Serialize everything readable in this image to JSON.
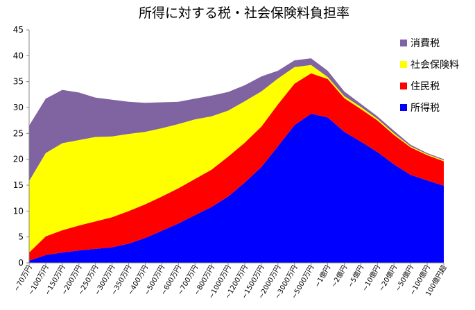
{
  "chart_data": {
    "type": "area",
    "stacked": true,
    "title": "所得に対する税・社会保険料負担率",
    "xlabel": "",
    "ylabel": "",
    "ylim": [
      0,
      45
    ],
    "yticks": [
      0,
      5,
      10,
      15,
      20,
      25,
      30,
      35,
      40,
      45
    ],
    "grid": false,
    "legend_position": "top-right",
    "categories": [
      "~70万円",
      "~100万円",
      "~150万円",
      "~200万円",
      "~250万円",
      "~300万円",
      "~350万円",
      "~400万円",
      "~500万円",
      "~600万円",
      "~700万円",
      "~800万円",
      "~1000万円",
      "~1200万円",
      "~1500万円",
      "~2000万円",
      "~3000万円",
      "~5000万円",
      "~1億円",
      "~2億円",
      "~5億円",
      "~10億円",
      "~20億円",
      "~50億円",
      "~100億円",
      "100億円超"
    ],
    "series": [
      {
        "name": "所得税",
        "color": "#0000ff",
        "values": [
          0.4,
          1.5,
          2.0,
          2.4,
          2.7,
          3.0,
          3.7,
          4.8,
          6.2,
          7.6,
          9.2,
          10.8,
          12.8,
          15.5,
          18.5,
          22.5,
          26.6,
          28.8,
          28.1,
          25.3,
          23.4,
          21.4,
          19.0,
          17.0,
          15.9,
          14.9
        ]
      },
      {
        "name": "住民税",
        "color": "#ff0000",
        "values": [
          1.6,
          3.6,
          4.3,
          4.8,
          5.3,
          5.8,
          6.3,
          6.5,
          6.6,
          6.8,
          7.0,
          7.2,
          7.7,
          7.7,
          7.8,
          8.1,
          8.0,
          7.8,
          7.4,
          6.5,
          6.3,
          6.1,
          5.7,
          5.3,
          4.9,
          4.7
        ]
      },
      {
        "name": "社会保険料",
        "color": "#ffff00",
        "values": [
          13.8,
          16.1,
          16.8,
          16.5,
          16.3,
          15.6,
          14.9,
          14.0,
          13.2,
          12.4,
          11.5,
          10.3,
          8.9,
          8.0,
          6.8,
          5.0,
          3.2,
          1.6,
          0.4,
          0.4,
          0.4,
          0.3,
          0.3,
          0.2,
          0.2,
          0.2
        ]
      },
      {
        "name": "消費税",
        "color": "#8064a2",
        "values": [
          10.7,
          10.5,
          10.3,
          9.2,
          7.6,
          7.1,
          6.2,
          5.6,
          5.0,
          4.3,
          4.0,
          4.0,
          3.6,
          3.1,
          2.9,
          1.5,
          1.3,
          1.3,
          1.2,
          0.9,
          0.6,
          0.5,
          0.5,
          0.3,
          0.2,
          0.2
        ]
      }
    ]
  }
}
